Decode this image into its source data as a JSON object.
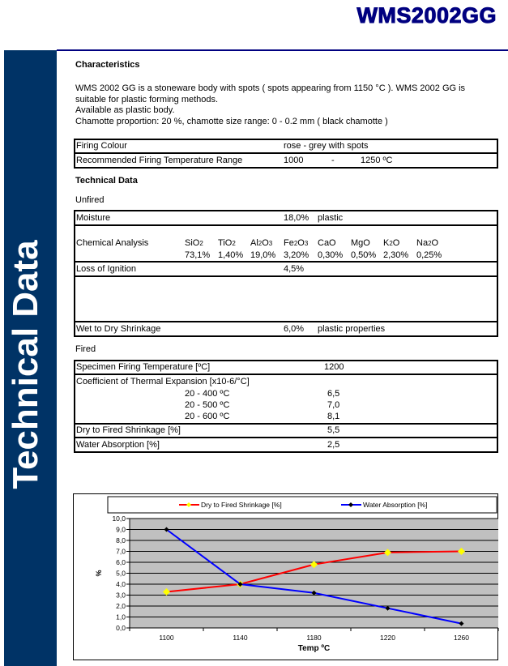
{
  "header": {
    "title": "WMS2002GG"
  },
  "sidebar": {
    "label": "Technical Data"
  },
  "characteristics": {
    "heading": "Characteristics",
    "p1": "WMS 2002 GG is a stoneware body with spots ( spots appearing from 1150 °C ). WMS 2002 GG is suitable for plastic forming methods.",
    "p2": "Available as plastic body.",
    "p3": "Chamotte proportion: 20 %, chamotte size range: 0 - 0.2 mm ( black chamotte )"
  },
  "firing": {
    "colour_label": "Firing Colour",
    "colour_value": "rose - grey with spots",
    "range_label": "Recommended Firing Temperature Range",
    "range_min": "1000",
    "range_sep": "-",
    "range_max": "1250 ºC"
  },
  "technical": {
    "heading": "Technical Data"
  },
  "unfired": {
    "heading": "Unfired",
    "moisture_label": "Moisture",
    "moisture_value": "18,0%",
    "moisture_note": "plastic",
    "chem_label": "Chemical Analysis",
    "chem": [
      {
        "el": "SiO",
        "sub": "2",
        "val": "73,1%"
      },
      {
        "el": "TiO",
        "sub": "2",
        "val": "1,40%"
      },
      {
        "el": "Al",
        "sub": "2",
        "el2": "O",
        "sub2": "3",
        "val": "19,0%"
      },
      {
        "el": "Fe",
        "sub": "2",
        "el2": "O",
        "sub2": "3",
        "val": "3,20%"
      },
      {
        "el": "CaO",
        "sub": "",
        "val": "0,30%"
      },
      {
        "el": "MgO",
        "sub": "",
        "val": "0,50%"
      },
      {
        "el": "K",
        "sub": "2",
        "el2": "O",
        "sub2": "",
        "val": "2,30%"
      },
      {
        "el": "Na",
        "sub": "2",
        "el2": "O",
        "sub2": "",
        "val": "0,25%"
      }
    ],
    "loi_label": "Loss of Ignition",
    "loi_value": "4,5%",
    "wds_label": "Wet to Dry Shrinkage",
    "wds_value": "6,0%",
    "wds_note": "plastic properties"
  },
  "fired": {
    "heading": "Fired",
    "spec_label": "Specimen Firing Temperature [ºC]",
    "spec_value": "1200",
    "cte_label": "Coefficient of Thermal Expansion [x10-6/°C]",
    "cte": [
      {
        "range": "20 - 400 ºC",
        "val": "6,5"
      },
      {
        "range": "20 - 500 ºC",
        "val": "7,0"
      },
      {
        "range": "20 - 600 ºC",
        "val": "8,1"
      }
    ],
    "dfs_label": "Dry to Fired Shrinkage [%]",
    "dfs_value": "5,5",
    "wa_label": "Water Absorption [%]",
    "wa_value": "2,5"
  },
  "chart_data": {
    "type": "line",
    "categories": [
      "1100",
      "1140",
      "1180",
      "1220",
      "1260"
    ],
    "series": [
      {
        "name": "Dry to Fired Shrinkage [%]",
        "values": [
          3.3,
          4.0,
          5.8,
          6.9,
          7.0
        ],
        "color": "#ff0000",
        "marker": "#ffff00"
      },
      {
        "name": "Water Absorption [%]",
        "values": [
          9.0,
          4.0,
          3.2,
          1.8,
          0.4
        ],
        "color": "#0000ff",
        "marker": "#000000"
      }
    ],
    "xlabel": "Temp ºC",
    "ylabel": "%",
    "ylim": [
      0,
      10
    ],
    "yticks": [
      "0,0",
      "1,0",
      "2,0",
      "3,0",
      "4,0",
      "5,0",
      "6,0",
      "7,0",
      "8,0",
      "9,0",
      "10,0"
    ],
    "grid": true,
    "legend": "top",
    "plot_bg": "#c0c0c0"
  }
}
